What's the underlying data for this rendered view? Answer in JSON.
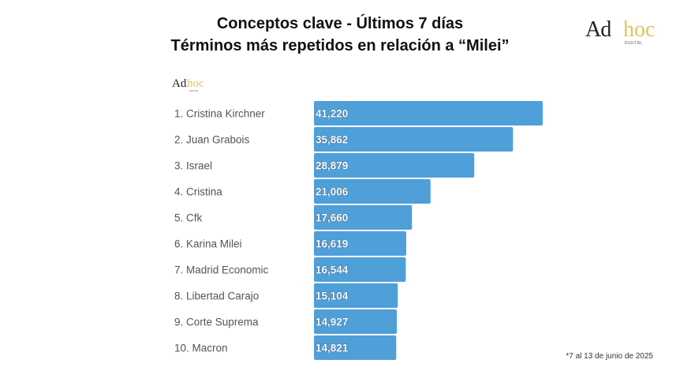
{
  "header": {
    "title_line1": "Conceptos clave - Últimos 7 días",
    "title_line2": "Términos más repetidos en relación a “Milei”"
  },
  "logo": {
    "ad": "Ad",
    "hoc": "hoc",
    "digital": "DIGITAL"
  },
  "footnote": "*7 al 13 de junio de 2025",
  "colors": {
    "bar": "#4f9fd8",
    "bar_label": "#ffffff",
    "category_text": "#555555"
  },
  "chart_data": {
    "type": "bar",
    "orientation": "horizontal",
    "categories": [
      "1. Cristina Kirchner",
      "2. Juan Grabois",
      "3. Israel",
      "4. Cristina",
      "5. Cfk",
      "6. Karina Milei",
      "7. Madrid Economic",
      "8. Libertad Carajo",
      "9. Corte Suprema",
      "10. Macron"
    ],
    "values": [
      41220,
      35862,
      28879,
      21006,
      17660,
      16619,
      16544,
      15104,
      14927,
      14821
    ],
    "value_labels": [
      "41,220",
      "35,862",
      "28,879",
      "21,006",
      "17,660",
      "16,619",
      "16,544",
      "15,104",
      "14,927",
      "14,821"
    ],
    "xlim": [
      0,
      41220
    ],
    "grid": false,
    "legend": "none"
  }
}
